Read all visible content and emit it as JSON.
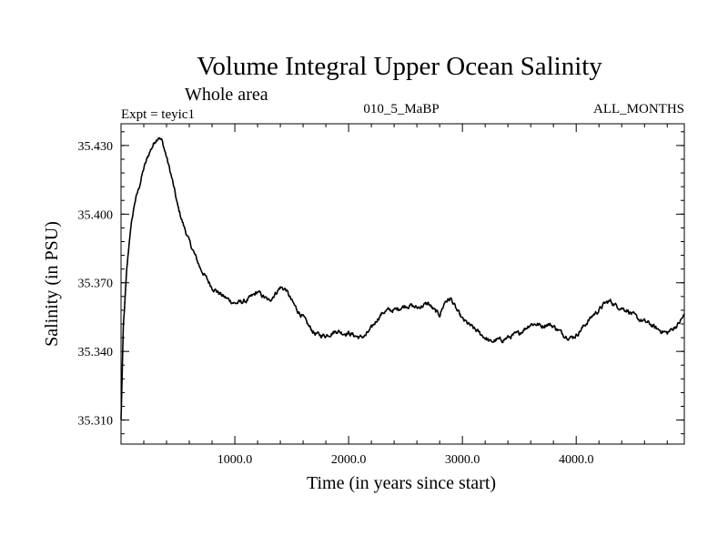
{
  "chart_data": {
    "type": "line",
    "title": "Volume Integral Upper Ocean Salinity",
    "subtitle": "Whole area",
    "header_left": "Expt = teyic1",
    "header_center": "010_5_MaBP",
    "header_right": "ALL_MONTHS",
    "xlabel": "Time (in years since start)",
    "ylabel": "Salinity (in PSU)",
    "xlim": [
      0,
      4950
    ],
    "ylim": [
      35.2995,
      35.4395
    ],
    "x_ticks": [
      {
        "value": 1000,
        "label": "1000.0"
      },
      {
        "value": 2000,
        "label": "2000.0"
      },
      {
        "value": 3000,
        "label": "3000.0"
      },
      {
        "value": 4000,
        "label": "4000.0"
      }
    ],
    "y_ticks": [
      {
        "value": 35.31,
        "label": "35.310"
      },
      {
        "value": 35.34,
        "label": "35.340"
      },
      {
        "value": 35.37,
        "label": "35.370"
      },
      {
        "value": 35.4,
        "label": "35.400"
      },
      {
        "value": 35.43,
        "label": "35.430"
      }
    ],
    "series": [
      {
        "name": "salinity",
        "x": [
          0,
          20,
          50,
          80,
          120,
          160,
          200,
          250,
          300,
          330,
          360,
          400,
          450,
          500,
          550,
          600,
          650,
          700,
          750,
          800,
          850,
          900,
          1000,
          1100,
          1150,
          1200,
          1250,
          1300,
          1350,
          1400,
          1450,
          1500,
          1550,
          1600,
          1650,
          1700,
          1750,
          1800,
          1850,
          1900,
          1950,
          2000,
          2050,
          2100,
          2150,
          2200,
          2250,
          2300,
          2350,
          2400,
          2450,
          2500,
          2550,
          2600,
          2650,
          2700,
          2750,
          2800,
          2850,
          2900,
          2950,
          3000,
          3050,
          3100,
          3150,
          3200,
          3250,
          3300,
          3350,
          3400,
          3450,
          3500,
          3550,
          3600,
          3650,
          3700,
          3750,
          3800,
          3850,
          3900,
          3950,
          4000,
          4050,
          4100,
          4150,
          4200,
          4250,
          4300,
          4350,
          4400,
          4450,
          4500,
          4550,
          4600,
          4650,
          4700,
          4750,
          4800,
          4850,
          4900,
          4950
        ],
        "y": [
          35.31,
          35.35,
          35.375,
          35.392,
          35.405,
          35.412,
          35.42,
          35.427,
          35.432,
          35.434,
          35.432,
          35.425,
          35.415,
          35.403,
          35.395,
          35.388,
          35.382,
          35.376,
          35.372,
          35.368,
          35.366,
          35.364,
          35.361,
          35.362,
          35.364,
          35.366,
          35.364,
          35.362,
          35.365,
          35.368,
          35.367,
          35.362,
          35.358,
          35.355,
          35.351,
          35.348,
          35.347,
          35.347,
          35.348,
          35.349,
          35.348,
          35.348,
          35.347,
          35.346,
          35.347,
          35.35,
          35.354,
          35.357,
          35.358,
          35.358,
          35.359,
          35.36,
          35.36,
          35.359,
          35.36,
          35.361,
          35.358,
          35.356,
          35.362,
          35.363,
          35.358,
          35.354,
          35.352,
          35.35,
          35.348,
          35.346,
          35.344,
          35.345,
          35.345,
          35.346,
          35.347,
          35.348,
          35.35,
          35.352,
          35.352,
          35.351,
          35.352,
          35.351,
          35.349,
          35.347,
          35.346,
          35.347,
          35.35,
          35.353,
          35.356,
          35.358,
          35.361,
          35.362,
          35.36,
          35.359,
          35.358,
          35.356,
          35.354,
          35.353,
          35.352,
          35.35,
          35.349,
          35.348,
          35.35,
          35.352,
          35.356
        ]
      }
    ]
  }
}
